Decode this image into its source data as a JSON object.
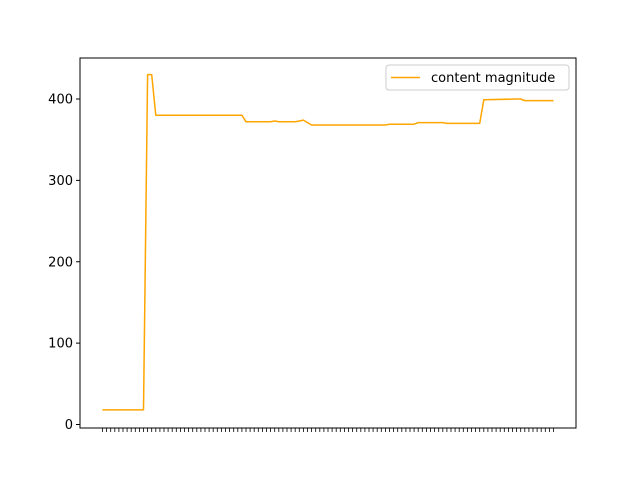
{
  "chart_data": {
    "type": "line",
    "title": "",
    "xlabel": "",
    "ylabel": "",
    "x_tick_labels_visible": false,
    "x_tick_count": 111,
    "ylim": [
      0,
      450
    ],
    "yticks": [
      0,
      100,
      200,
      300,
      400
    ],
    "grid": false,
    "legend": {
      "position": "top-right"
    },
    "series": [
      {
        "name": "content magnitude",
        "color": "#ffa500",
        "x": [
          0,
          10,
          11,
          12,
          13,
          34,
          35,
          36,
          41,
          42,
          43,
          47,
          48,
          49,
          50,
          51,
          69,
          70,
          71,
          76,
          77,
          78,
          83,
          84,
          92,
          93,
          101,
          102,
          103,
          108,
          109,
          110
        ],
        "y": [
          18,
          18,
          430,
          430,
          380,
          380,
          372,
          372,
          372,
          373,
          372,
          372,
          373,
          374,
          371,
          368,
          368,
          369,
          369,
          369,
          371,
          371,
          371,
          370,
          370,
          399,
          400,
          400,
          398,
          398,
          398,
          398
        ]
      }
    ]
  }
}
